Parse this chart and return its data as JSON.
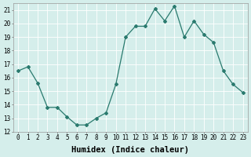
{
  "x": [
    0,
    1,
    2,
    3,
    4,
    5,
    6,
    7,
    8,
    9,
    10,
    11,
    12,
    13,
    14,
    15,
    16,
    17,
    18,
    19,
    20,
    21,
    22,
    23
  ],
  "y": [
    16.5,
    16.8,
    15.6,
    13.8,
    13.8,
    13.1,
    12.5,
    12.5,
    13.0,
    13.4,
    15.5,
    19.0,
    19.8,
    19.8,
    21.1,
    20.2,
    21.3,
    19.0,
    20.2,
    19.2,
    18.6,
    16.5,
    15.5,
    14.9
  ],
  "line_color": "#2a7a6e",
  "marker": "D",
  "marker_size": 2.0,
  "bg_color": "#d5eeeb",
  "grid_color": "#ffffff",
  "xlabel": "Humidex (Indice chaleur)",
  "ylim": [
    12,
    21.5
  ],
  "xlim": [
    -0.5,
    23.5
  ],
  "yticks": [
    12,
    13,
    14,
    15,
    16,
    17,
    18,
    19,
    20,
    21
  ],
  "xticks": [
    0,
    1,
    2,
    3,
    4,
    5,
    6,
    7,
    8,
    9,
    10,
    11,
    12,
    13,
    14,
    15,
    16,
    17,
    18,
    19,
    20,
    21,
    22,
    23
  ],
  "tick_label_size": 5.5,
  "xlabel_size": 7.5,
  "linewidth": 0.9
}
